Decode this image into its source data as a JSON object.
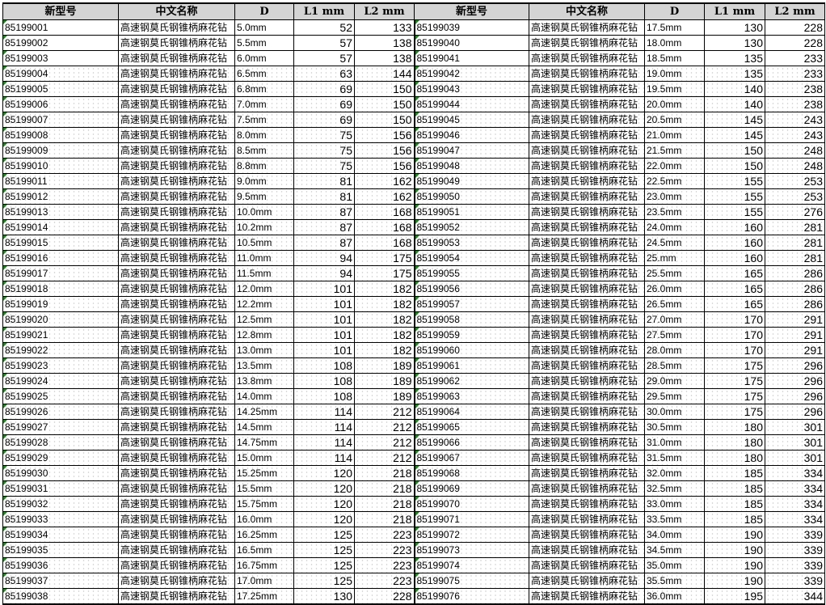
{
  "headers": [
    "新型号",
    "中文名称",
    "D",
    "L1  mm",
    "L2  mm"
  ],
  "product_name": "高速钢莫氏钢锥柄麻花钻",
  "left": {
    "models": [
      "85199001",
      "85199002",
      "85199003",
      "85199004",
      "85199005",
      "85199006",
      "85199007",
      "85199008",
      "85199009",
      "85199010",
      "85199011",
      "85199012",
      "85199013",
      "85199014",
      "85199015",
      "85199016",
      "85199017",
      "85199018",
      "85199019",
      "85199020",
      "85199021",
      "85199022",
      "85199023",
      "85199024",
      "85199025",
      "85199026",
      "85199027",
      "85199028",
      "85199029",
      "85199030",
      "85199031",
      "85199032",
      "85199033",
      "85199034",
      "85199035",
      "85199036",
      "85199037",
      "85199038"
    ],
    "D": [
      "5.0mm",
      "5.5mm",
      "6.0mm",
      "6.5mm",
      "6.8mm",
      "7.0mm",
      "7.5mm",
      "8.0mm",
      "8.5mm",
      "8.8mm",
      "9.0mm",
      "9.5mm",
      "10.0mm",
      "10.2mm",
      "10.5mm",
      "11.0mm",
      "11.5mm",
      "12.0mm",
      "12.2mm",
      "12.5mm",
      "12.8mm",
      "13.0mm",
      "13.5mm",
      "13.8mm",
      "14.0mm",
      "14.25mm",
      "14.5mm",
      "14.75mm",
      "15.0mm",
      "15.25mm",
      "15.5mm",
      "15.75mm",
      "16.0mm",
      "16.25mm",
      "16.5mm",
      "16.75mm",
      "17.0mm",
      "17.25mm"
    ],
    "L1": [
      52,
      57,
      57,
      63,
      69,
      69,
      69,
      75,
      75,
      75,
      81,
      81,
      87,
      87,
      87,
      94,
      94,
      101,
      101,
      101,
      101,
      101,
      108,
      108,
      108,
      114,
      114,
      114,
      114,
      120,
      120,
      120,
      120,
      125,
      125,
      125,
      125,
      130
    ],
    "L2": [
      133,
      138,
      138,
      144,
      150,
      150,
      150,
      156,
      156,
      156,
      162,
      162,
      168,
      168,
      168,
      175,
      175,
      182,
      182,
      182,
      182,
      182,
      189,
      189,
      189,
      212,
      212,
      212,
      212,
      218,
      218,
      218,
      218,
      223,
      223,
      223,
      223,
      228
    ]
  },
  "right": {
    "models": [
      "85199039",
      "85199040",
      "85199041",
      "85199042",
      "85199043",
      "85199044",
      "85199045",
      "85199046",
      "85199047",
      "85199048",
      "85199049",
      "85199050",
      "85199051",
      "85199052",
      "85199053",
      "85199054",
      "85199055",
      "85199056",
      "85199057",
      "85199058",
      "85199059",
      "85199060",
      "85199061",
      "85199062",
      "85199063",
      "85199064",
      "85199065",
      "85199066",
      "85199067",
      "85199068",
      "85199069",
      "85199070",
      "85199071",
      "85199072",
      "85199073",
      "85199074",
      "85199075",
      "85199076"
    ],
    "D": [
      "17.5mm",
      "18.0mm",
      "18.5mm",
      "19.0mm",
      "19.5mm",
      "20.0mm",
      "20.5mm",
      "21.0mm",
      "21.5mm",
      "22.0mm",
      "22.5mm",
      "23.0mm",
      "23.5mm",
      "24.0mm",
      "24.5mm",
      "25.mm",
      "25.5mm",
      "26.0mm",
      "26.5mm",
      "27.0mm",
      "27.5mm",
      "28.0mm",
      "28.5mm",
      "29.0mm",
      "29.5mm",
      "30.0mm",
      "30.5mm",
      "31.0mm",
      "31.5mm",
      "32.0mm",
      "32.5mm",
      "33.0mm",
      "33.5mm",
      "34.0mm",
      "34.5mm",
      "35.0mm",
      "35.5mm",
      "36.0mm"
    ],
    "L1": [
      130,
      130,
      135,
      135,
      140,
      140,
      145,
      145,
      150,
      150,
      155,
      155,
      155,
      160,
      160,
      160,
      165,
      165,
      165,
      170,
      170,
      170,
      175,
      175,
      175,
      175,
      180,
      180,
      180,
      185,
      185,
      185,
      185,
      190,
      190,
      190,
      190,
      195
    ],
    "L2": [
      228,
      228,
      233,
      233,
      238,
      238,
      243,
      243,
      248,
      248,
      253,
      253,
      276,
      281,
      281,
      281,
      286,
      286,
      286,
      291,
      291,
      291,
      296,
      296,
      296,
      296,
      301,
      301,
      301,
      334,
      334,
      334,
      334,
      339,
      339,
      339,
      339,
      344
    ]
  }
}
